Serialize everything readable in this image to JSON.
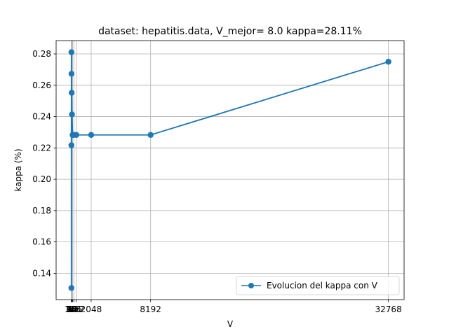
{
  "chart_data": {
    "type": "line",
    "title": "dataset: hepatitis.data, V_mejor= 8.0 kappa=28.11%",
    "xlabel": "V",
    "ylabel": "kappa (%)",
    "xlim": [
      -1574,
      34390
    ],
    "ylim": [
      0.1232,
      0.2885
    ],
    "xticks": [
      2,
      4,
      8,
      16,
      32,
      64,
      128,
      256,
      512,
      2048,
      8192,
      32768
    ],
    "xtick_labels": [
      "2",
      "4",
      "8",
      "16",
      "32",
      "64",
      "128",
      "256",
      "512",
      "2048",
      "8192",
      "32768"
    ],
    "yticks": [
      0.14,
      0.16,
      0.18,
      0.2,
      0.22,
      0.24,
      0.26,
      0.28
    ],
    "ytick_labels": [
      "0.14",
      "0.16",
      "0.18",
      "0.20",
      "0.22",
      "0.24",
      "0.26",
      "0.28"
    ],
    "grid": true,
    "legend_position": "lower-right",
    "series": [
      {
        "name": "Evolucion del kappa con V",
        "color": "#1f77b4",
        "marker": "circle",
        "x": [
          2,
          4,
          8,
          16,
          32,
          64,
          128,
          256,
          512,
          2048,
          8192,
          32768
        ],
        "y": [
          0.1306,
          0.2217,
          0.2811,
          0.2673,
          0.2552,
          0.2414,
          0.2283,
          0.2283,
          0.2283,
          0.2283,
          0.2283,
          0.275
        ]
      }
    ]
  }
}
